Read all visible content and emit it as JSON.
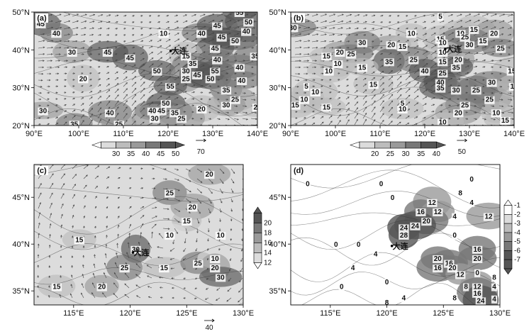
{
  "figure": {
    "city_label": "大连"
  },
  "colors": {
    "shade_levels": [
      "#ffffff",
      "#dcdcdc",
      "#bcbcbc",
      "#9a9a9a",
      "#787878",
      "#555555"
    ],
    "vector": "#444444",
    "contour": "#333333"
  },
  "chart_data": [
    {
      "panel": "(a)",
      "type": "heatmap",
      "variable_note": "shaded wind speed with wind vectors",
      "x_ticks": [
        "90°E",
        "100°E",
        "110°E",
        "120°E",
        "130°E",
        "140°E"
      ],
      "y_ticks": [
        "20°N",
        "30°N",
        "40°N",
        "50°N"
      ],
      "xlim": [
        90,
        140
      ],
      "ylim": [
        20,
        50
      ],
      "colorbar": {
        "levels": [
          30,
          35,
          40,
          45,
          50
        ],
        "labels": [
          "30",
          "35",
          "40",
          "45",
          "50"
        ]
      },
      "reference_vector": "70",
      "contour_labels": [
        {
          "text": "45",
          "lon": 91.5,
          "lat": 47
        },
        {
          "text": "40",
          "lon": 95,
          "lat": 44.5
        },
        {
          "text": "30",
          "lon": 98.5,
          "lat": 39.5
        },
        {
          "text": "20",
          "lon": 101,
          "lat": 32.5
        },
        {
          "text": "45",
          "lon": 106.5,
          "lat": 39.5
        },
        {
          "text": "45",
          "lon": 111.5,
          "lat": 38
        },
        {
          "text": "10",
          "lon": 119,
          "lat": 44.5
        },
        {
          "text": "40",
          "lon": 127.5,
          "lat": 44.5
        },
        {
          "text": "45",
          "lon": 132,
          "lat": 43.5
        },
        {
          "text": "45",
          "lon": 131,
          "lat": 46.5
        },
        {
          "text": "55",
          "lon": 136,
          "lat": 50
        },
        {
          "text": "50",
          "lon": 138,
          "lat": 47.5
        },
        {
          "text": "40",
          "lon": 137.5,
          "lat": 45
        },
        {
          "text": "50",
          "lon": 135,
          "lat": 42.5
        },
        {
          "text": "45",
          "lon": 130.5,
          "lat": 40.5
        },
        {
          "text": "35",
          "lon": 139.5,
          "lat": 38.5
        },
        {
          "text": "15",
          "lon": 124,
          "lat": 38.5
        },
        {
          "text": "40",
          "lon": 131,
          "lat": 37.5
        },
        {
          "text": "35",
          "lon": 125.5,
          "lat": 36.5
        },
        {
          "text": "30",
          "lon": 124,
          "lat": 34.5
        },
        {
          "text": "50",
          "lon": 117.5,
          "lat": 34.5
        },
        {
          "text": "25",
          "lon": 124,
          "lat": 32.5
        },
        {
          "text": "45",
          "lon": 126.5,
          "lat": 33.5
        },
        {
          "text": "55",
          "lon": 130.5,
          "lat": 34.5
        },
        {
          "text": "50",
          "lon": 129.5,
          "lat": 32.5
        },
        {
          "text": "40",
          "lon": 136,
          "lat": 35.5
        },
        {
          "text": "55",
          "lon": 120.5,
          "lat": 30.5
        },
        {
          "text": "40",
          "lon": 136.5,
          "lat": 32
        },
        {
          "text": "35",
          "lon": 133,
          "lat": 29.5
        },
        {
          "text": "25",
          "lon": 135,
          "lat": 27
        },
        {
          "text": "20",
          "lon": 140,
          "lat": 25
        },
        {
          "text": "30",
          "lon": 133,
          "lat": 25.5
        },
        {
          "text": "20",
          "lon": 127.5,
          "lat": 24.5
        },
        {
          "text": "50",
          "lon": 119.5,
          "lat": 26
        },
        {
          "text": "40",
          "lon": 116.5,
          "lat": 24
        },
        {
          "text": "45",
          "lon": 118.5,
          "lat": 24
        },
        {
          "text": "35",
          "lon": 121.5,
          "lat": 23.5
        },
        {
          "text": "30",
          "lon": 117,
          "lat": 22
        },
        {
          "text": "25",
          "lon": 123,
          "lat": 22
        },
        {
          "text": "40",
          "lon": 107,
          "lat": 23.5
        },
        {
          "text": "30",
          "lon": 92,
          "lat": 24
        },
        {
          "text": "35",
          "lon": 99,
          "lat": 20.5
        },
        {
          "text": "25",
          "lon": 109,
          "lat": 20.5
        }
      ],
      "city": {
        "lon": 122.5,
        "lat": 39
      }
    },
    {
      "panel": "(b)",
      "type": "heatmap",
      "variable_note": "shaded wind speed with wind vectors",
      "x_ticks": [
        "90°E",
        "100°E",
        "110°E",
        "120°E",
        "130°E",
        "140°E"
      ],
      "y_ticks": [
        "20°N",
        "30°N",
        "40°N",
        "50°N"
      ],
      "xlim": [
        90,
        140
      ],
      "ylim": [
        20,
        50
      ],
      "colorbar": {
        "levels": [
          20,
          25,
          30,
          35,
          40
        ],
        "labels": [
          "20",
          "25",
          "30",
          "35",
          "40"
        ]
      },
      "reference_vector": "50",
      "contour_labels": [
        {
          "text": "5",
          "lon": 123.5,
          "lat": 49
        },
        {
          "text": "30",
          "lon": 90.5,
          "lat": 46
        },
        {
          "text": "10",
          "lon": 117,
          "lat": 44.5
        },
        {
          "text": "10",
          "lon": 128,
          "lat": 44.5
        },
        {
          "text": "15",
          "lon": 131,
          "lat": 45.5
        },
        {
          "text": "15",
          "lon": 123.5,
          "lat": 43
        },
        {
          "text": "15",
          "lon": 133,
          "lat": 42.5
        },
        {
          "text": "10",
          "lon": 124,
          "lat": 42
        },
        {
          "text": "20",
          "lon": 135.5,
          "lat": 44.5
        },
        {
          "text": "25",
          "lon": 129,
          "lat": 43.5
        },
        {
          "text": "20",
          "lon": 112.5,
          "lat": 41.5
        },
        {
          "text": "30",
          "lon": 106,
          "lat": 42
        },
        {
          "text": "15",
          "lon": 115,
          "lat": 41
        },
        {
          "text": "20",
          "lon": 101,
          "lat": 39.5
        },
        {
          "text": "25",
          "lon": 103.5,
          "lat": 39
        },
        {
          "text": "15",
          "lon": 98,
          "lat": 38.5
        },
        {
          "text": "30",
          "lon": 130,
          "lat": 41.5
        },
        {
          "text": "25",
          "lon": 137,
          "lat": 40.5
        },
        {
          "text": "10",
          "lon": 124,
          "lat": 39.5
        },
        {
          "text": "35",
          "lon": 112,
          "lat": 37
        },
        {
          "text": "25",
          "lon": 117.5,
          "lat": 37.5
        },
        {
          "text": "10",
          "lon": 100.5,
          "lat": 36.5
        },
        {
          "text": "10",
          "lon": 98.5,
          "lat": 34.5
        },
        {
          "text": "15",
          "lon": 124,
          "lat": 37
        },
        {
          "text": "20",
          "lon": 127.5,
          "lat": 37.5
        },
        {
          "text": "15",
          "lon": 106,
          "lat": 35.5
        },
        {
          "text": "35",
          "lon": 127,
          "lat": 35.5
        },
        {
          "text": "40",
          "lon": 120,
          "lat": 34.5
        },
        {
          "text": "25",
          "lon": 124,
          "lat": 34
        },
        {
          "text": "15",
          "lon": 139.5,
          "lat": 34.5
        },
        {
          "text": "15",
          "lon": 108.5,
          "lat": 31
        },
        {
          "text": "40",
          "lon": 123.5,
          "lat": 31.5
        },
        {
          "text": "35",
          "lon": 123.5,
          "lat": 30
        },
        {
          "text": "30",
          "lon": 127,
          "lat": 29.5
        },
        {
          "text": "25",
          "lon": 131.5,
          "lat": 29.5
        },
        {
          "text": "30",
          "lon": 135,
          "lat": 31.5
        },
        {
          "text": "5",
          "lon": 93.5,
          "lat": 30.5
        },
        {
          "text": "10",
          "lon": 95.5,
          "lat": 29
        },
        {
          "text": "10",
          "lon": 93,
          "lat": 27
        },
        {
          "text": "15",
          "lon": 91,
          "lat": 25.5
        },
        {
          "text": "15",
          "lon": 98,
          "lat": 25
        },
        {
          "text": "5",
          "lon": 115,
          "lat": 26
        },
        {
          "text": "10",
          "lon": 115,
          "lat": 24.5
        },
        {
          "text": "25",
          "lon": 134.5,
          "lat": 27
        },
        {
          "text": "25",
          "lon": 129,
          "lat": 25.5
        },
        {
          "text": "20",
          "lon": 127.5,
          "lat": 23.5
        },
        {
          "text": "10",
          "lon": 136,
          "lat": 23.5
        },
        {
          "text": "15",
          "lon": 141,
          "lat": 26
        },
        {
          "text": "10",
          "lon": 124,
          "lat": 21
        },
        {
          "text": "15",
          "lon": 138,
          "lat": 21.5
        },
        {
          "text": "15",
          "lon": 140,
          "lat": 30.5
        }
      ],
      "city": {
        "lon": 126.5,
        "lat": 39.5
      }
    },
    {
      "panel": "(c)",
      "type": "heatmap",
      "variable_note": "shaded field with wind vectors",
      "x_ticks": [
        "115°E",
        "120°E",
        "125°E",
        "130°E"
      ],
      "y_ticks": [
        "35°N",
        "40°N",
        "45°N"
      ],
      "xlim": [
        111.5,
        130
      ],
      "ylim": [
        33.5,
        48.5
      ],
      "colorbar": {
        "levels": [
          12,
          14,
          16,
          18,
          20
        ],
        "labels": [
          "12",
          "14",
          "16",
          "18",
          "20"
        ]
      },
      "reference_vector": "40",
      "contour_labels": [
        {
          "text": "20",
          "lon": 127,
          "lat": 47.5
        },
        {
          "text": "25",
          "lon": 123.5,
          "lat": 45.5
        },
        {
          "text": "20",
          "lon": 125.5,
          "lat": 44
        },
        {
          "text": "15",
          "lon": 125,
          "lat": 42.5
        },
        {
          "text": "10",
          "lon": 123.5,
          "lat": 41
        },
        {
          "text": "10",
          "lon": 128,
          "lat": 41
        },
        {
          "text": "15",
          "lon": 115.5,
          "lat": 40.5
        },
        {
          "text": "30",
          "lon": 120.5,
          "lat": 39.5
        },
        {
          "text": "25",
          "lon": 119.5,
          "lat": 37.5
        },
        {
          "text": "15",
          "lon": 123,
          "lat": 37.5
        },
        {
          "text": "25",
          "lon": 126,
          "lat": 38
        },
        {
          "text": "10",
          "lon": 127.5,
          "lat": 38.5
        },
        {
          "text": "20",
          "lon": 127.5,
          "lat": 37.5
        },
        {
          "text": "30",
          "lon": 128,
          "lat": 36.5
        },
        {
          "text": "15",
          "lon": 113.5,
          "lat": 35.5
        },
        {
          "text": "20",
          "lon": 117.5,
          "lat": 35.5
        }
      ],
      "city": {
        "lon": 121,
        "lat": 38.8
      }
    },
    {
      "panel": "(d)",
      "type": "heatmap",
      "variable_note": "shaded negative values with contours",
      "x_ticks": [
        "115°E",
        "120°E",
        "125°E",
        "130°E"
      ],
      "y_ticks": [
        "35°N",
        "40°N",
        "45°N"
      ],
      "xlim": [
        111.5,
        130
      ],
      "ylim": [
        33.5,
        48.5
      ],
      "colorbar": {
        "levels": [
          -1,
          -2,
          -3,
          -4,
          -5,
          -6,
          -7
        ],
        "labels": [
          "-1",
          "-2",
          "-3",
          "-4",
          "-5",
          "-6",
          "-7"
        ]
      },
      "contour_labels": [
        {
          "text": "0",
          "lon": 113,
          "lat": 46.5
        },
        {
          "text": "0",
          "lon": 119.5,
          "lat": 46.5
        },
        {
          "text": "0",
          "lon": 120.5,
          "lat": 45
        },
        {
          "text": "0",
          "lon": 127.5,
          "lat": 47
        },
        {
          "text": "8",
          "lon": 126.5,
          "lat": 45.5
        },
        {
          "text": "12",
          "lon": 124,
          "lat": 44.5
        },
        {
          "text": "16",
          "lon": 123,
          "lat": 43.5
        },
        {
          "text": "12",
          "lon": 124.5,
          "lat": 43.5
        },
        {
          "text": "20",
          "lon": 123.5,
          "lat": 42.5
        },
        {
          "text": "24",
          "lon": 122.5,
          "lat": 42
        },
        {
          "text": "24",
          "lon": 121.5,
          "lat": 41.8
        },
        {
          "text": "28",
          "lon": 121.5,
          "lat": 41
        },
        {
          "text": "4",
          "lon": 127.5,
          "lat": 44.5
        },
        {
          "text": "4",
          "lon": 126,
          "lat": 43
        },
        {
          "text": "12",
          "lon": 129,
          "lat": 43
        },
        {
          "text": "0",
          "lon": 126,
          "lat": 41
        },
        {
          "text": "0",
          "lon": 115.5,
          "lat": 40
        },
        {
          "text": "0",
          "lon": 117.5,
          "lat": 40
        },
        {
          "text": "4",
          "lon": 119,
          "lat": 39
        },
        {
          "text": "4",
          "lon": 117,
          "lat": 37.5
        },
        {
          "text": "20",
          "lon": 124.5,
          "lat": 38.5
        },
        {
          "text": "16",
          "lon": 125.5,
          "lat": 38
        },
        {
          "text": "20",
          "lon": 125.8,
          "lat": 37.5
        },
        {
          "text": "16",
          "lon": 124.5,
          "lat": 37.5
        },
        {
          "text": "16",
          "lon": 128,
          "lat": 39.5
        },
        {
          "text": "20",
          "lon": 128,
          "lat": 38.5
        },
        {
          "text": "12",
          "lon": 126.5,
          "lat": 36.8
        },
        {
          "text": "0",
          "lon": 128,
          "lat": 37
        },
        {
          "text": "8",
          "lon": 129.5,
          "lat": 36.5
        },
        {
          "text": "8",
          "lon": 127,
          "lat": 35.5
        },
        {
          "text": "12",
          "lon": 128,
          "lat": 35.5
        },
        {
          "text": "16",
          "lon": 128,
          "lat": 34.8
        },
        {
          "text": "24",
          "lon": 128.3,
          "lat": 34
        },
        {
          "text": "4",
          "lon": 129.5,
          "lat": 34.2
        },
        {
          "text": "4",
          "lon": 129.5,
          "lat": 35.5
        },
        {
          "text": "0",
          "lon": 120,
          "lat": 36
        },
        {
          "text": "0",
          "lon": 116,
          "lat": 35.5
        },
        {
          "text": "8",
          "lon": 120,
          "lat": 33.8
        },
        {
          "text": "4",
          "lon": 121.5,
          "lat": 34.3
        },
        {
          "text": "8",
          "lon": 126,
          "lat": 34.3
        }
      ],
      "city": {
        "lon": 121.2,
        "lat": 39.5
      }
    }
  ]
}
